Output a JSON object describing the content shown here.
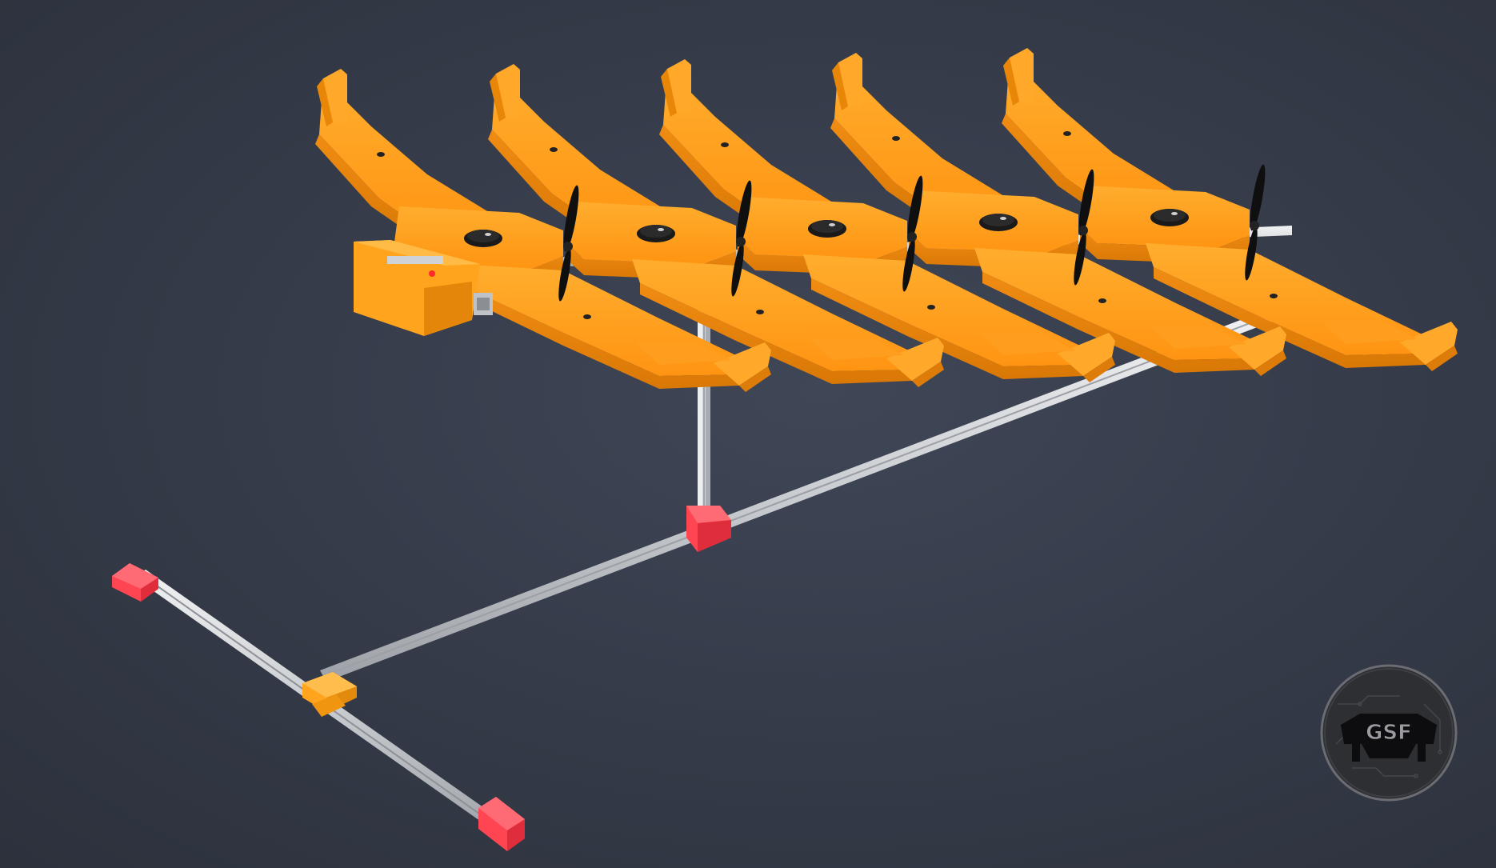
{
  "viewport": {
    "background": "#363c4a",
    "drone_color": "#ff9a1f",
    "drone_shade": "#e07f0a",
    "rail_color": "#d9dcdf",
    "foot_color": "#ff4a57",
    "bracket_color": "#ffa41c",
    "propeller_color": "#111111"
  },
  "model": {
    "drone_count": 5
  },
  "watermark": {
    "label": "GSF",
    "icon": "gsf-logo-icon"
  }
}
